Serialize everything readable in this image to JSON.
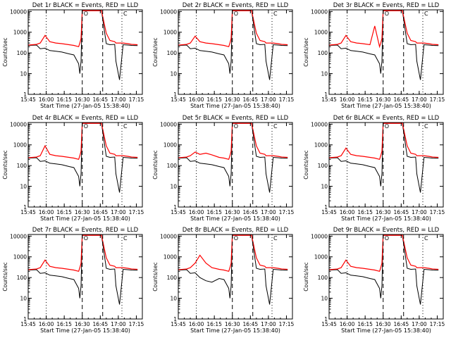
{
  "colors": {
    "events": "#000000",
    "lld": "#ff0000",
    "axis": "#000000"
  },
  "chart_data": {
    "type": "line",
    "layout": "3x3 grid",
    "shared": {
      "xlabel": "Start Time (27-Jan-05 15:38:40)",
      "ylabel": "Counts/sec",
      "yscale": "log",
      "ylim": [
        1,
        12000
      ],
      "xlim_minutes": [
        0,
        95
      ],
      "x_ticks": [
        "15:45",
        "16:00",
        "16:15",
        "16:30",
        "16:45",
        "17:00",
        "17:15"
      ],
      "y_ticks": [
        "1",
        "10",
        "100",
        "1000",
        "10000"
      ],
      "vertical_markers": [
        {
          "time": "16:00",
          "style": "dotted"
        },
        {
          "time": "16:30",
          "style": "dashed",
          "label": "O"
        },
        {
          "time": "16:47",
          "style": "dashed"
        },
        {
          "time": "17:03",
          "style": "dotted",
          "label": "C"
        }
      ],
      "series_times": [
        "15:45",
        "15:52",
        "15:55",
        "15:59",
        "16:03",
        "16:08",
        "16:13",
        "16:19",
        "16:23",
        "16:27",
        "16:28",
        "16:29",
        "16:30",
        "16:34",
        "16:46",
        "16:50",
        "16:53",
        "16:57",
        "16:58",
        "17:01",
        "17:04",
        "17:08",
        "17:11",
        "17:16"
      ]
    },
    "panels": [
      {
        "title": "Det 1r BLACK = Events, RED = LLD",
        "series": [
          {
            "name": "Events",
            "values": [
              230,
              240,
              160,
              170,
              130,
              120,
              110,
              90,
              80,
              30,
              10,
              40,
              11000,
              11000,
              11000,
              280,
              250,
              260,
              40,
              5,
              250,
              240,
              230,
              225
            ]
          },
          {
            "name": "LLD",
            "values": [
              240,
              260,
              300,
              700,
              350,
              300,
              280,
              250,
              230,
              200,
              300,
              500,
              11000,
              11000,
              11000,
              900,
              400,
              350,
              300,
              300,
              300,
              280,
              260,
              250
            ]
          }
        ]
      },
      {
        "title": "Det 2r BLACK = Events, RED = LLD",
        "series": [
          {
            "name": "Events",
            "values": [
              230,
              240,
              160,
              170,
              130,
              120,
              110,
              90,
              80,
              30,
              10,
              40,
              11000,
              11000,
              11000,
              280,
              250,
              260,
              40,
              5,
              250,
              240,
              230,
              225
            ]
          },
          {
            "name": "LLD",
            "values": [
              240,
              260,
              300,
              650,
              350,
              300,
              280,
              250,
              230,
              200,
              300,
              500,
              11000,
              11000,
              11000,
              900,
              400,
              350,
              300,
              300,
              300,
              280,
              260,
              250
            ]
          }
        ]
      },
      {
        "title": "Det 3r BLACK = Events, RED = LLD",
        "series": [
          {
            "name": "Events",
            "values": [
              230,
              240,
              160,
              170,
              130,
              120,
              110,
              90,
              80,
              30,
              10,
              40,
              11000,
              11000,
              11000,
              280,
              250,
              260,
              40,
              5,
              250,
              240,
              230,
              225
            ]
          },
          {
            "name": "LLD",
            "values": [
              240,
              260,
              300,
              700,
              350,
              300,
              280,
              250,
              2000,
              200,
              300,
              500,
              11000,
              11000,
              11000,
              900,
              400,
              350,
              300,
              300,
              300,
              280,
              260,
              250
            ]
          }
        ]
      },
      {
        "title": "Det 4r BLACK = Events, RED = LLD",
        "series": [
          {
            "name": "Events",
            "values": [
              230,
              240,
              160,
              170,
              130,
              120,
              110,
              90,
              80,
              30,
              10,
              40,
              11000,
              11000,
              11000,
              280,
              250,
              260,
              40,
              5,
              250,
              240,
              230,
              225
            ]
          },
          {
            "name": "LLD",
            "values": [
              240,
              260,
              300,
              900,
              350,
              300,
              280,
              250,
              230,
              200,
              300,
              500,
              11000,
              11000,
              11000,
              900,
              400,
              350,
              300,
              300,
              300,
              280,
              260,
              250
            ]
          }
        ]
      },
      {
        "title": "Det 5r BLACK = Events, RED = LLD",
        "series": [
          {
            "name": "Events",
            "values": [
              230,
              240,
              160,
              170,
              130,
              120,
              110,
              90,
              80,
              30,
              10,
              40,
              11000,
              11000,
              11000,
              280,
              250,
              260,
              40,
              5,
              250,
              240,
              230,
              225
            ]
          },
          {
            "name": "LLD",
            "values": [
              240,
              260,
              300,
              450,
              350,
              400,
              330,
              250,
              230,
              200,
              300,
              500,
              11000,
              11000,
              11000,
              900,
              400,
              350,
              300,
              300,
              300,
              280,
              260,
              250
            ]
          }
        ]
      },
      {
        "title": "Det 6r BLACK = Events, RED = LLD",
        "series": [
          {
            "name": "Events",
            "values": [
              230,
              240,
              160,
              170,
              130,
              120,
              110,
              90,
              80,
              30,
              10,
              40,
              11000,
              11000,
              11000,
              280,
              250,
              260,
              40,
              5,
              250,
              240,
              230,
              225
            ]
          },
          {
            "name": "LLD",
            "values": [
              240,
              260,
              300,
              700,
              350,
              300,
              280,
              250,
              230,
              200,
              300,
              500,
              11000,
              11000,
              11000,
              900,
              400,
              350,
              300,
              300,
              300,
              280,
              260,
              250
            ]
          }
        ]
      },
      {
        "title": "Det 7r BLACK = Events, RED = LLD",
        "series": [
          {
            "name": "Events",
            "values": [
              230,
              240,
              160,
              170,
              130,
              120,
              110,
              90,
              80,
              30,
              10,
              40,
              11000,
              11000,
              11000,
              280,
              250,
              260,
              40,
              5,
              250,
              240,
              230,
              225
            ]
          },
          {
            "name": "LLD",
            "values": [
              240,
              260,
              300,
              700,
              350,
              300,
              280,
              250,
              230,
              200,
              300,
              500,
              11000,
              11000,
              11000,
              900,
              400,
              350,
              300,
              300,
              300,
              280,
              260,
              250
            ]
          }
        ]
      },
      {
        "title": "Det 8r BLACK = Events, RED = LLD",
        "series": [
          {
            "name": "Events",
            "values": [
              230,
              240,
              160,
              170,
              100,
              70,
              60,
              90,
              80,
              30,
              10,
              40,
              11000,
              11000,
              11000,
              280,
              250,
              260,
              40,
              5,
              250,
              240,
              230,
              225
            ]
          },
          {
            "name": "LLD",
            "values": [
              240,
              260,
              300,
              500,
              1200,
              500,
              300,
              250,
              230,
              200,
              300,
              500,
              11000,
              11000,
              11000,
              900,
              400,
              350,
              300,
              300,
              300,
              280,
              260,
              250
            ]
          }
        ]
      },
      {
        "title": "Det 9r BLACK = Events, RED = LLD",
        "series": [
          {
            "name": "Events",
            "values": [
              230,
              240,
              160,
              170,
              130,
              120,
              110,
              90,
              80,
              30,
              10,
              40,
              11000,
              11000,
              11000,
              280,
              250,
              260,
              40,
              5,
              250,
              240,
              230,
              225
            ]
          },
          {
            "name": "LLD",
            "values": [
              240,
              260,
              300,
              700,
              350,
              300,
              280,
              250,
              230,
              200,
              300,
              500,
              11000,
              11000,
              11000,
              900,
              400,
              350,
              300,
              300,
              300,
              280,
              260,
              250
            ]
          }
        ]
      }
    ]
  }
}
